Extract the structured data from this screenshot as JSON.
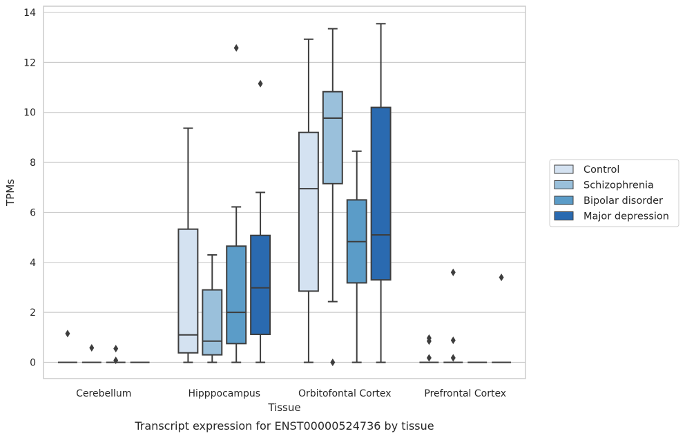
{
  "caption": "Transcript expression for ENST00000524736 by tissue",
  "chart_data": {
    "type": "box",
    "xlabel": "Tissue",
    "ylabel": "TPMs",
    "ylim": [
      -0.65,
      14.25
    ],
    "yticks": [
      0,
      2,
      4,
      6,
      8,
      10,
      12,
      14
    ],
    "categories": [
      "Cerebellum",
      "Hipppocampus",
      "Orbitofontal Cortex",
      "Prefrontal Cortex"
    ],
    "grid": "horizontal",
    "legend_position": "right",
    "series": [
      {
        "name": "Control",
        "color": "#d4e2f1",
        "boxes": [
          {
            "q1": 0,
            "median": 0,
            "q3": 0,
            "whisker_low": 0,
            "whisker_high": 0,
            "fliers": [
              1.15
            ]
          },
          {
            "q1": 0.38,
            "median": 1.1,
            "q3": 5.33,
            "whisker_low": 0,
            "whisker_high": 9.37,
            "fliers": []
          },
          {
            "q1": 2.85,
            "median": 6.95,
            "q3": 9.2,
            "whisker_low": 0,
            "whisker_high": 12.93,
            "fliers": []
          },
          {
            "q1": 0,
            "median": 0,
            "q3": 0,
            "whisker_low": 0,
            "whisker_high": 0,
            "fliers": [
              0.97,
              0.85,
              0.18
            ]
          }
        ]
      },
      {
        "name": "Schizophrenia",
        "color": "#9ac0db",
        "boxes": [
          {
            "q1": 0,
            "median": 0,
            "q3": 0,
            "whisker_low": 0,
            "whisker_high": 0,
            "fliers": [
              0.58
            ]
          },
          {
            "q1": 0.3,
            "median": 0.85,
            "q3": 2.9,
            "whisker_low": 0,
            "whisker_high": 4.3,
            "fliers": []
          },
          {
            "q1": 7.15,
            "median": 9.77,
            "q3": 10.83,
            "whisker_low": 2.43,
            "whisker_high": 13.35,
            "fliers": [
              0
            ]
          },
          {
            "q1": 0,
            "median": 0,
            "q3": 0,
            "whisker_low": 0,
            "whisker_high": 0,
            "fliers": [
              3.6,
              0.88,
              0.18
            ]
          }
        ]
      },
      {
        "name": "Bipolar disorder",
        "color": "#5b9cc8",
        "boxes": [
          {
            "q1": 0,
            "median": 0,
            "q3": 0,
            "whisker_low": 0,
            "whisker_high": 0,
            "fliers": [
              0.55,
              0.08
            ]
          },
          {
            "q1": 0.75,
            "median": 2.0,
            "q3": 4.65,
            "whisker_low": 0,
            "whisker_high": 6.22,
            "fliers": [
              12.58
            ]
          },
          {
            "q1": 3.18,
            "median": 4.83,
            "q3": 6.5,
            "whisker_low": 0,
            "whisker_high": 8.45,
            "fliers": []
          },
          {
            "q1": 0,
            "median": 0,
            "q3": 0,
            "whisker_low": 0,
            "whisker_high": 0,
            "fliers": []
          }
        ]
      },
      {
        "name": "Major depression",
        "color": "#2a6ab0",
        "boxes": [
          {
            "q1": 0,
            "median": 0,
            "q3": 0,
            "whisker_low": 0,
            "whisker_high": 0,
            "fliers": []
          },
          {
            "q1": 1.12,
            "median": 2.98,
            "q3": 5.08,
            "whisker_low": 0,
            "whisker_high": 6.8,
            "fliers": [
              11.15
            ]
          },
          {
            "q1": 3.3,
            "median": 5.1,
            "q3": 10.2,
            "whisker_low": 0,
            "whisker_high": 13.55,
            "fliers": []
          },
          {
            "q1": 0,
            "median": 0,
            "q3": 0,
            "whisker_low": 0,
            "whisker_high": 0,
            "fliers": [
              3.4
            ]
          }
        ]
      }
    ]
  }
}
